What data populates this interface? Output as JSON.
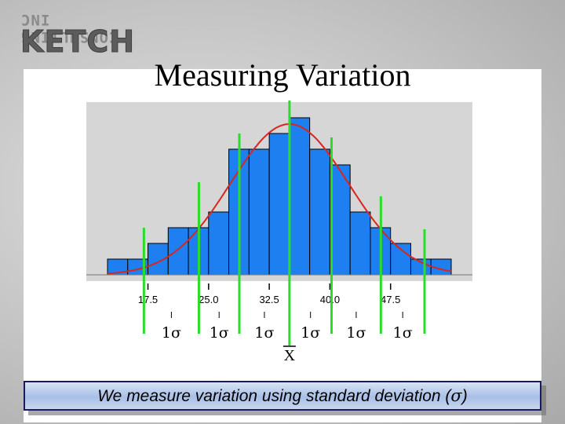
{
  "logo": {
    "small_text": "CONSULTING INC",
    "big_text": "KETCH"
  },
  "slide": {
    "title": "Measuring Variation",
    "caption_prefix": "We measure variation using standard deviation (",
    "caption_symbol": "σ",
    "caption_suffix": ")"
  },
  "chart_data": {
    "type": "bar",
    "bins": [
      {
        "start": 12.5,
        "end": 15.0,
        "value": 1
      },
      {
        "start": 15.0,
        "end": 17.5,
        "value": 1
      },
      {
        "start": 17.5,
        "end": 20.0,
        "value": 2
      },
      {
        "start": 20.0,
        "end": 22.5,
        "value": 3
      },
      {
        "start": 22.5,
        "end": 25.0,
        "value": 3
      },
      {
        "start": 25.0,
        "end": 27.5,
        "value": 4
      },
      {
        "start": 27.5,
        "end": 30.0,
        "value": 8
      },
      {
        "start": 30.0,
        "end": 32.5,
        "value": 8
      },
      {
        "start": 32.5,
        "end": 35.0,
        "value": 9
      },
      {
        "start": 35.0,
        "end": 37.5,
        "value": 10
      },
      {
        "start": 37.5,
        "end": 40.0,
        "value": 8
      },
      {
        "start": 40.0,
        "end": 42.5,
        "value": 7
      },
      {
        "start": 42.5,
        "end": 45.0,
        "value": 4
      },
      {
        "start": 45.0,
        "end": 47.5,
        "value": 3
      },
      {
        "start": 47.5,
        "end": 50.0,
        "value": 2
      },
      {
        "start": 50.0,
        "end": 52.5,
        "value": 1
      },
      {
        "start": 52.5,
        "end": 55.0,
        "value": 1
      }
    ],
    "x_ticks": [
      "17.5",
      "25.0",
      "32.5",
      "40.0",
      "47.5"
    ],
    "x_tick_values": [
      17.5,
      25.0,
      32.5,
      40.0,
      47.5
    ],
    "xlim": [
      12.5,
      55.0
    ],
    "ylim": [
      0,
      10.5
    ],
    "normal_curve": {
      "mean": 35.0,
      "sd": 7.3
    },
    "sigma_lines": [
      17.0,
      23.8,
      28.8,
      35.0,
      40.2,
      46.3,
      51.7
    ],
    "sigma_labels": [
      "1σ",
      "1σ",
      "1σ",
      "1σ",
      "1σ",
      "1σ"
    ],
    "mean_label": "X",
    "bar_color": "#1e7ff0",
    "curve_color": "#d9261c",
    "sigma_line_color": "#2bdc2b",
    "plot_background": "#d6d6d6"
  }
}
